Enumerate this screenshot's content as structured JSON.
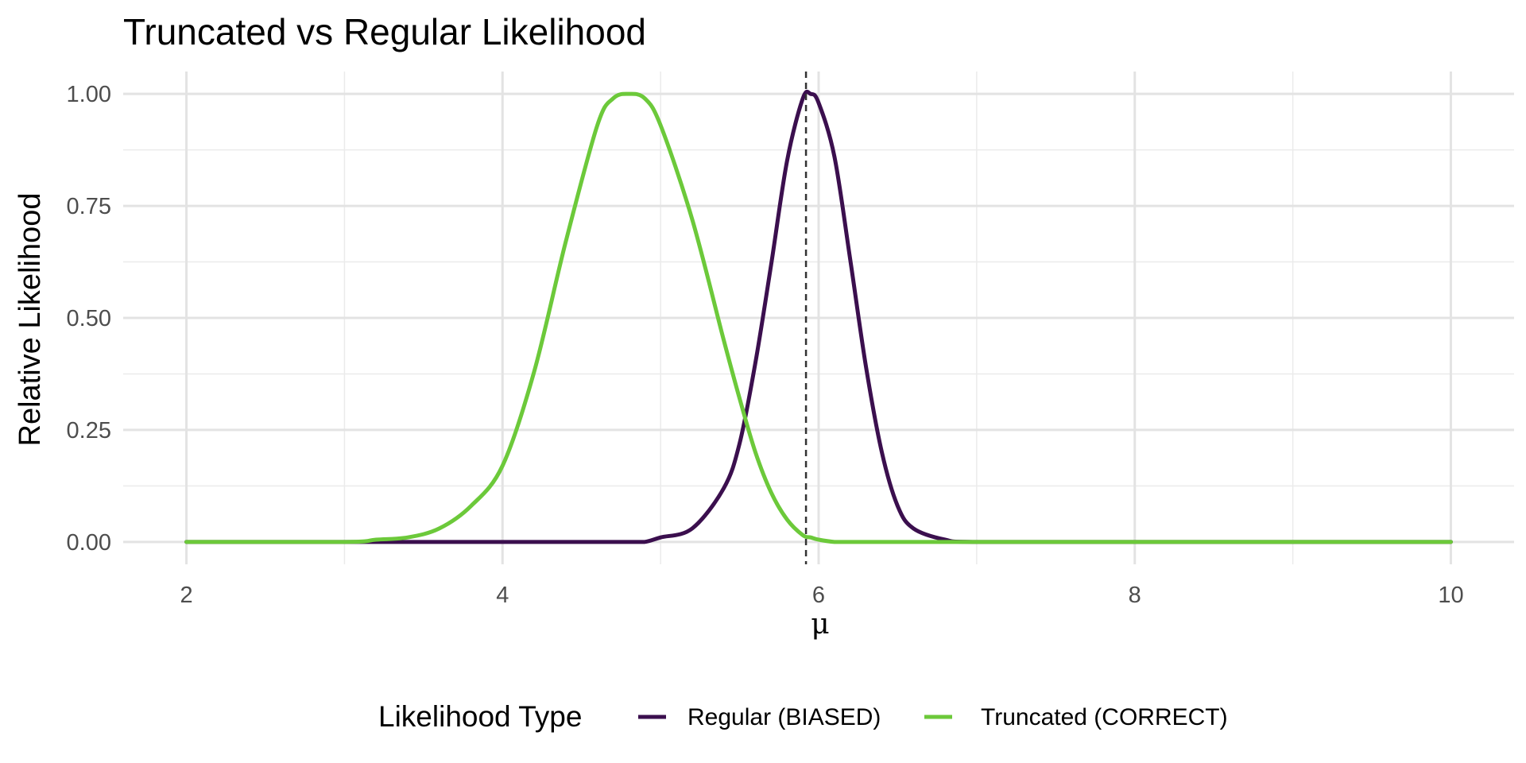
{
  "chart_data": {
    "type": "line",
    "title": "Truncated vs Regular Likelihood",
    "xlabel": "μ",
    "ylabel": "Relative Likelihood",
    "xlim": [
      1.6,
      10.4
    ],
    "ylim": [
      -0.05,
      1.05
    ],
    "x_ticks": [
      2,
      4,
      6,
      8,
      10
    ],
    "x_tick_labels": [
      "2",
      "4",
      "6",
      "8",
      "10"
    ],
    "x_minor_ticks": [
      3,
      5,
      7,
      9
    ],
    "y_ticks": [
      0,
      0.25,
      0.5,
      0.75,
      1.0
    ],
    "y_tick_labels": [
      "0.00",
      "0.25",
      "0.50",
      "0.75",
      "1.00"
    ],
    "y_minor_ticks": [
      0.125,
      0.375,
      0.625,
      0.875
    ],
    "grid": true,
    "legend_position": "bottom",
    "legend_title": "Likelihood Type",
    "vline": {
      "x": 5.92,
      "style": "dashed",
      "color": "#333333"
    },
    "x": [
      2.0,
      3.0,
      3.2,
      3.4,
      3.6,
      3.8,
      4.0,
      4.2,
      4.4,
      4.6,
      4.7,
      4.8,
      4.9,
      5.0,
      5.2,
      5.4,
      5.5,
      5.6,
      5.7,
      5.8,
      5.9,
      5.95,
      6.0,
      6.1,
      6.2,
      6.3,
      6.4,
      6.5,
      6.6,
      6.8,
      7.0,
      8.0,
      10.0
    ],
    "series": [
      {
        "name": "Regular (BIASED)",
        "color": "#3b0f4e",
        "values": [
          0.0,
          0.0,
          0.0,
          0.0,
          0.0,
          0.0,
          0.0,
          0.0,
          0.0,
          0.0,
          0.0,
          0.0,
          0.0,
          0.01,
          0.03,
          0.12,
          0.22,
          0.4,
          0.62,
          0.85,
          0.99,
          1.0,
          0.98,
          0.86,
          0.63,
          0.39,
          0.2,
          0.08,
          0.03,
          0.005,
          0.0,
          0.0,
          0.0
        ]
      },
      {
        "name": "Truncated (CORRECT)",
        "color": "#6cc93a",
        "values": [
          0.0,
          0.0,
          0.005,
          0.01,
          0.03,
          0.08,
          0.17,
          0.38,
          0.67,
          0.93,
          0.99,
          1.0,
          0.99,
          0.93,
          0.72,
          0.45,
          0.32,
          0.2,
          0.11,
          0.05,
          0.015,
          0.01,
          0.005,
          0.0,
          0.0,
          0.0,
          0.0,
          0.0,
          0.0,
          0.0,
          0.0,
          0.0,
          0.0
        ]
      }
    ]
  }
}
